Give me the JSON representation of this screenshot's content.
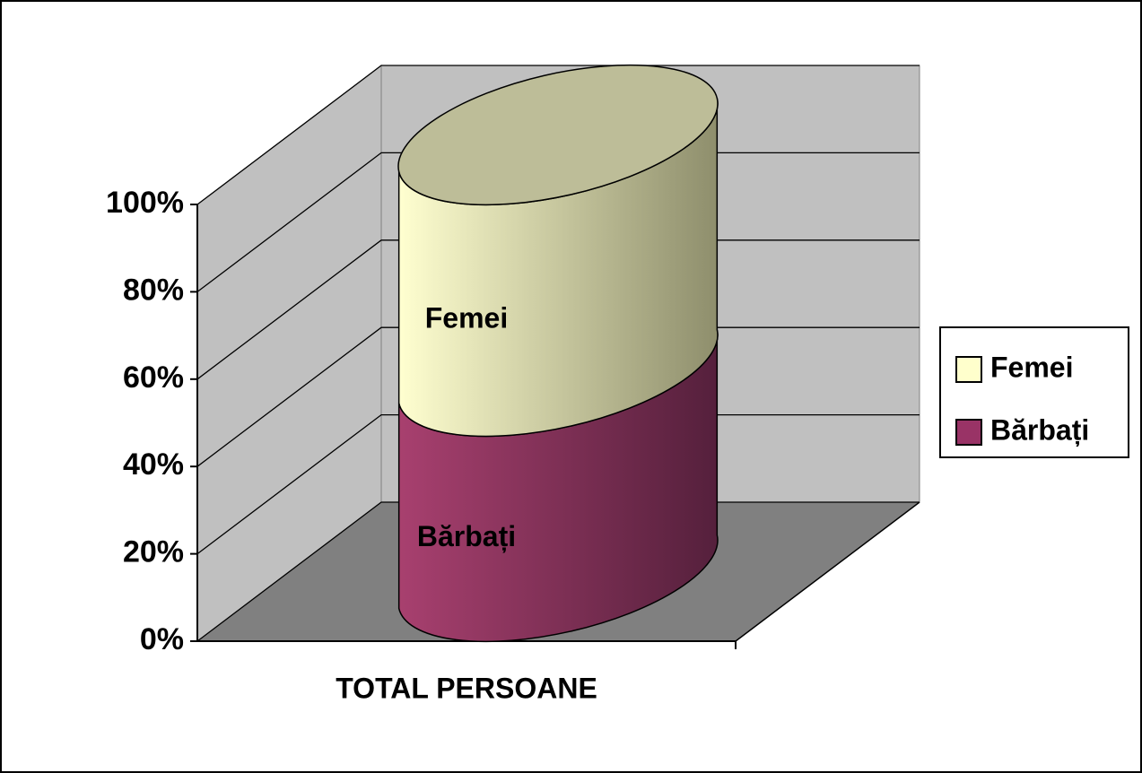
{
  "chart_data": {
    "type": "bar3d_cylinder_stacked",
    "categories": [
      "TOTAL PERSOANE"
    ],
    "series": [
      {
        "name": "Bărbați",
        "color": "#993366",
        "values": [
          47
        ]
      },
      {
        "name": "Femei",
        "color": "#ffffcc",
        "values": [
          53
        ]
      }
    ],
    "ylim": [
      0,
      100
    ],
    "yticks": [
      {
        "value": 0,
        "label": "0%"
      },
      {
        "value": 20,
        "label": "20%"
      },
      {
        "value": 40,
        "label": "40%"
      },
      {
        "value": 60,
        "label": "60%"
      },
      {
        "value": 80,
        "label": "80%"
      },
      {
        "value": 100,
        "label": "100%"
      }
    ],
    "grid": true,
    "legend": "right"
  }
}
